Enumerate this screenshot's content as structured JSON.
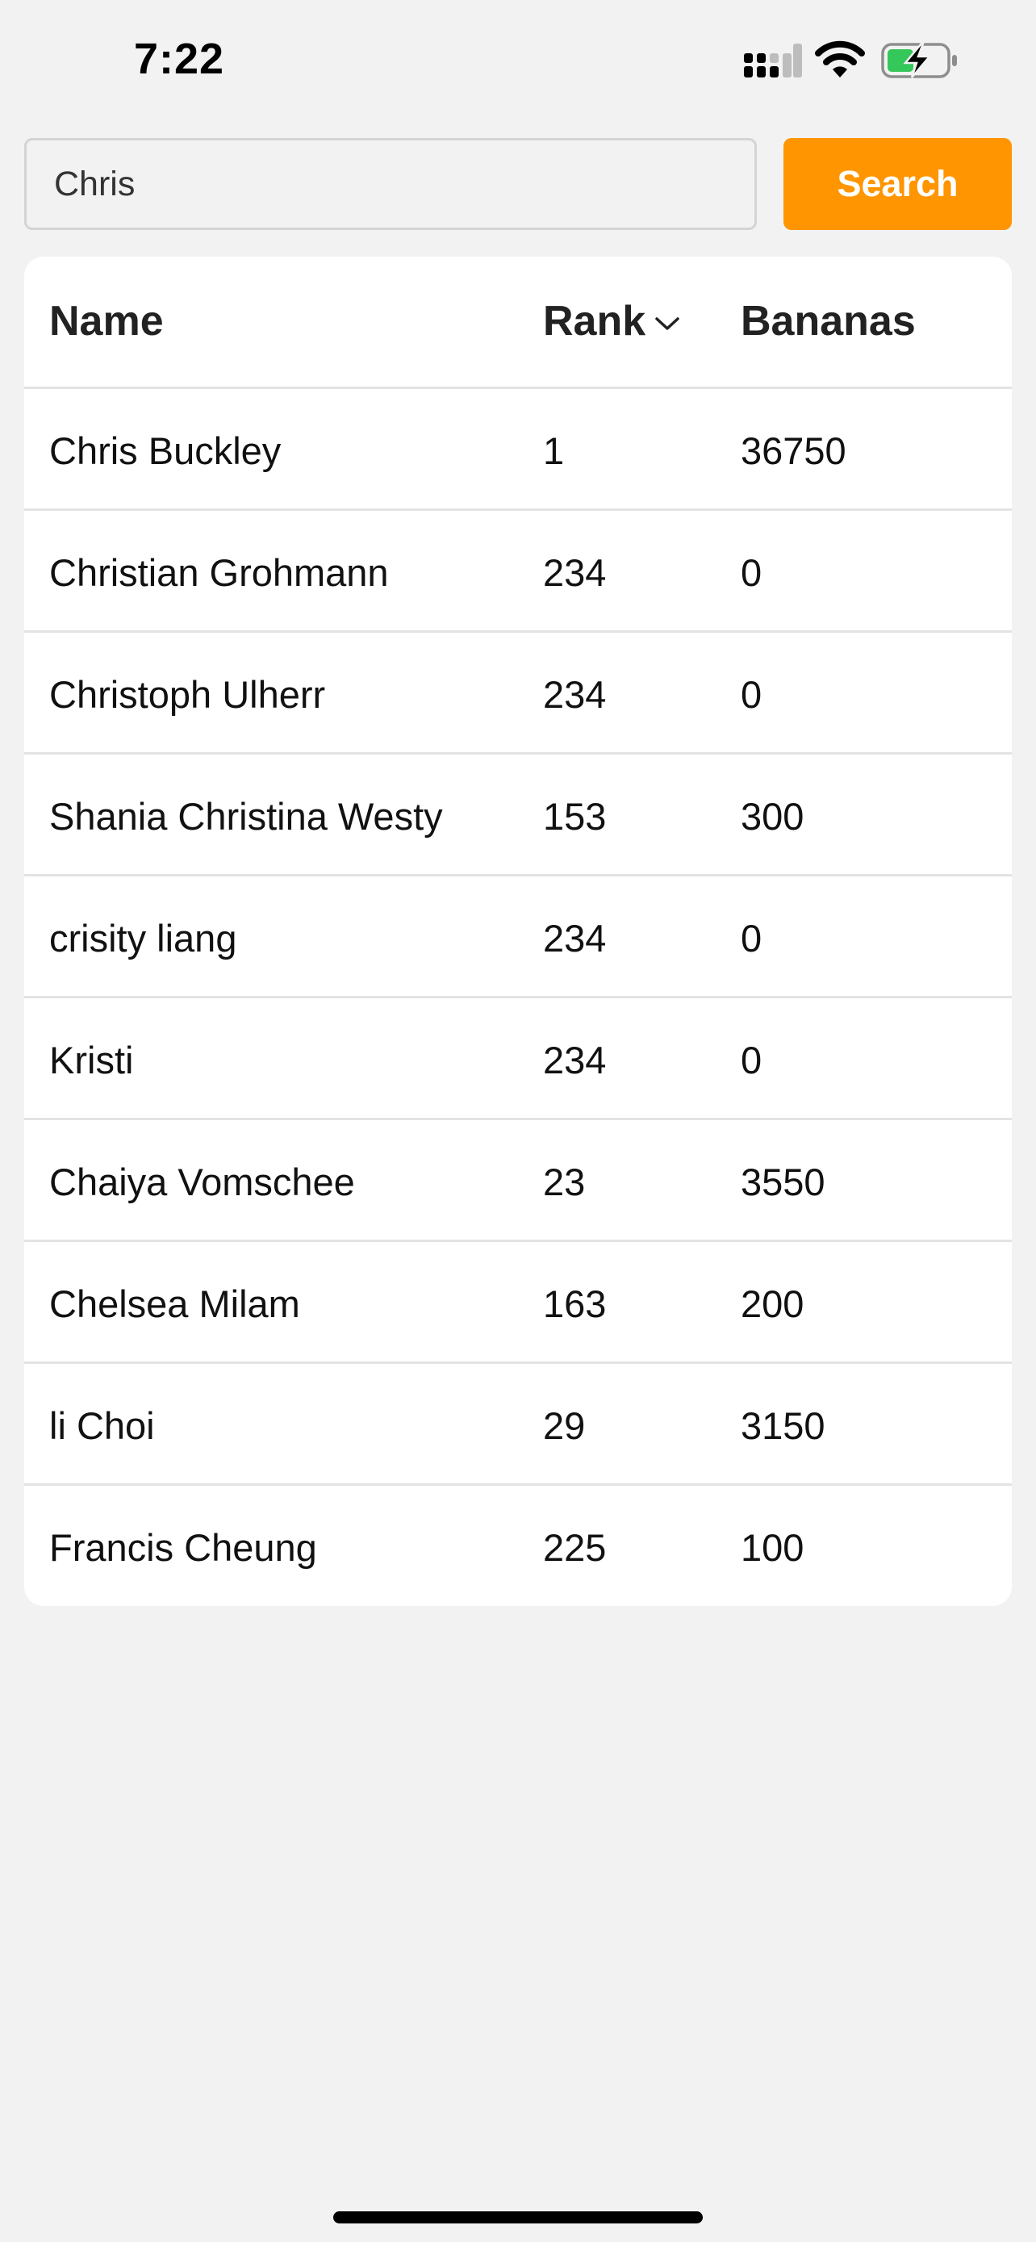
{
  "status_bar": {
    "time": "7:22",
    "icons": [
      "signal-icon",
      "wifi-icon",
      "battery-charging-icon"
    ],
    "battery_color": "#34c759"
  },
  "search": {
    "value": "Chris",
    "placeholder": "",
    "button_label": "Search",
    "button_color": "#ff9500"
  },
  "table": {
    "columns": {
      "name": "Name",
      "rank": "Rank",
      "bananas": "Bananas"
    },
    "sort_indicator_icon": "chevron-down-icon",
    "rows": [
      {
        "name": "Chris Buckley",
        "rank": "1",
        "bananas": "36750"
      },
      {
        "name": "Christian Grohmann",
        "rank": "234",
        "bananas": "0"
      },
      {
        "name": "Christoph Ulherr",
        "rank": "234",
        "bananas": "0"
      },
      {
        "name": "Shania Christina Westy",
        "rank": "153",
        "bananas": "300"
      },
      {
        "name": "crisity liang",
        "rank": "234",
        "bananas": "0"
      },
      {
        "name": "Kristi",
        "rank": "234",
        "bananas": "0"
      },
      {
        "name": "Chaiya Vomschee",
        "rank": "23",
        "bananas": "3550"
      },
      {
        "name": "Chelsea Milam",
        "rank": "163",
        "bananas": "200"
      },
      {
        "name": "li Choi",
        "rank": "29",
        "bananas": "3150"
      },
      {
        "name": "Francis Cheung",
        "rank": "225",
        "bananas": "100"
      }
    ]
  }
}
